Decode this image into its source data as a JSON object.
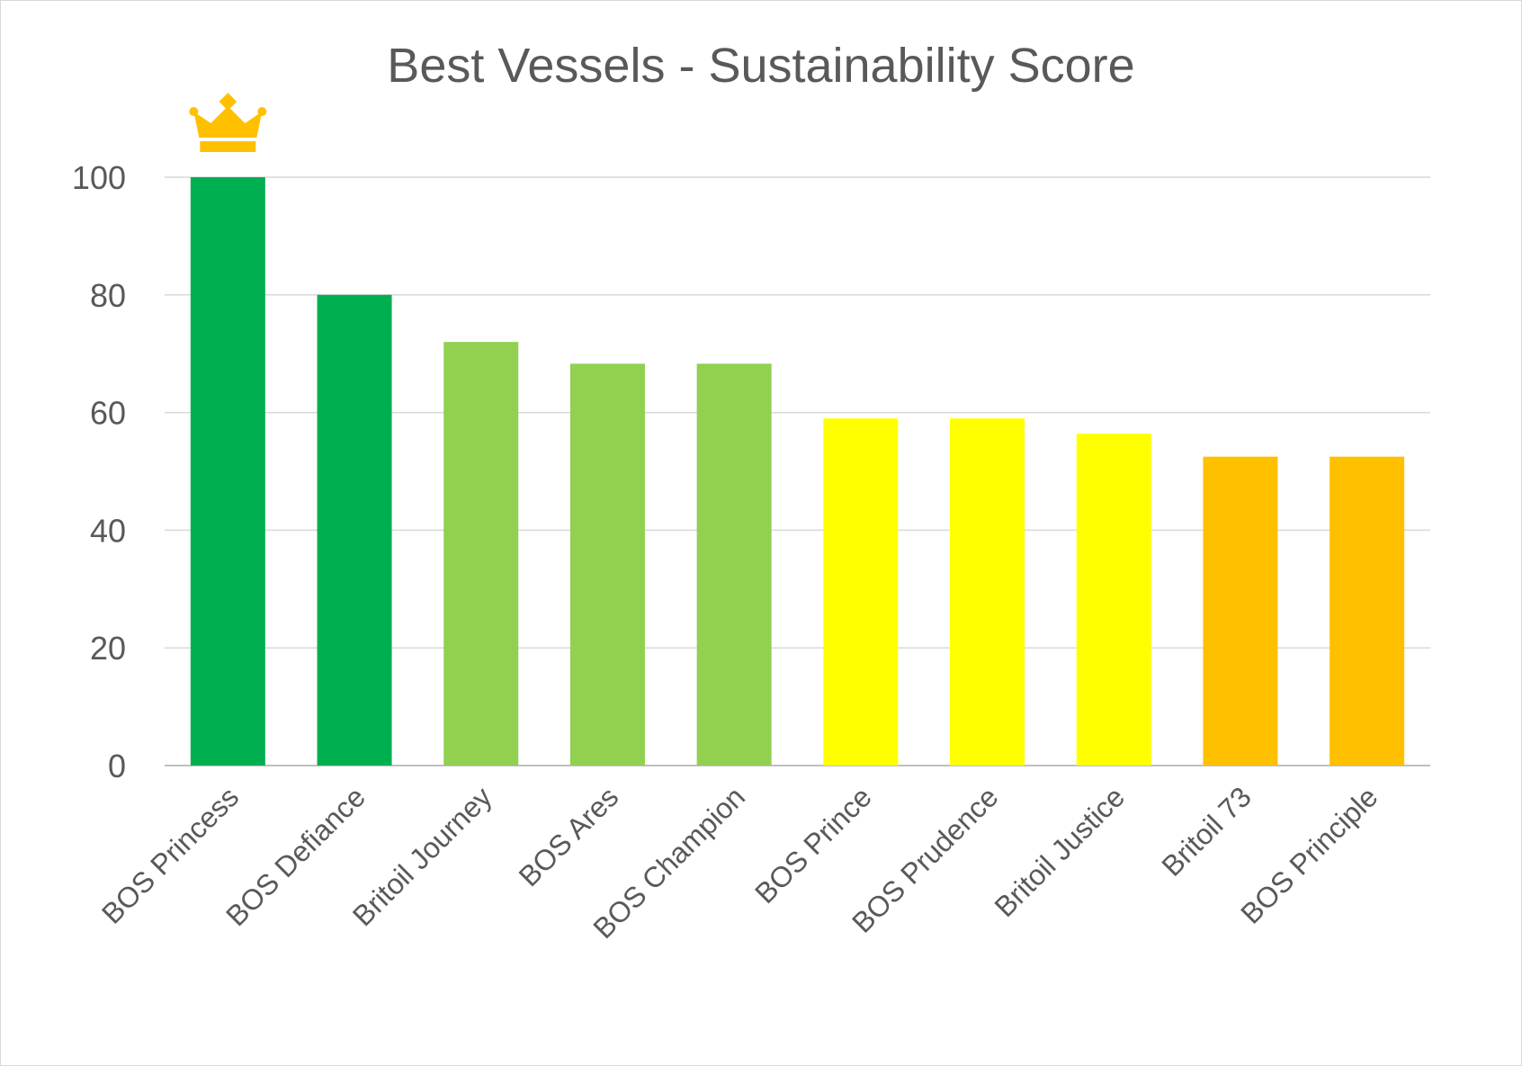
{
  "chart_data": {
    "type": "bar",
    "title": "Best Vessels - Sustainability Score",
    "xlabel": "",
    "ylabel": "",
    "ylim": [
      0,
      100
    ],
    "yticks": [
      0,
      20,
      40,
      60,
      80,
      100
    ],
    "grid": true,
    "categories": [
      "BOS Princess",
      "BOS Defiance",
      "Britoil Journey",
      "BOS Ares",
      "BOS Champion",
      "BOS Prince",
      "BOS Prudence",
      "Britoil Justice",
      "Britoil 73",
      "BOS Principle"
    ],
    "values": [
      100,
      80,
      72,
      68.3,
      68.3,
      59,
      59,
      56.4,
      52.5,
      52.5
    ],
    "bar_colors": [
      "#00b050",
      "#00b050",
      "#92d050",
      "#92d050",
      "#92d050",
      "#ffff00",
      "#ffff00",
      "#ffff00",
      "#ffc000",
      "#ffc000"
    ],
    "top_marker": {
      "category": "BOS Princess",
      "icon": "crown-icon",
      "color": "#ffc000"
    }
  }
}
